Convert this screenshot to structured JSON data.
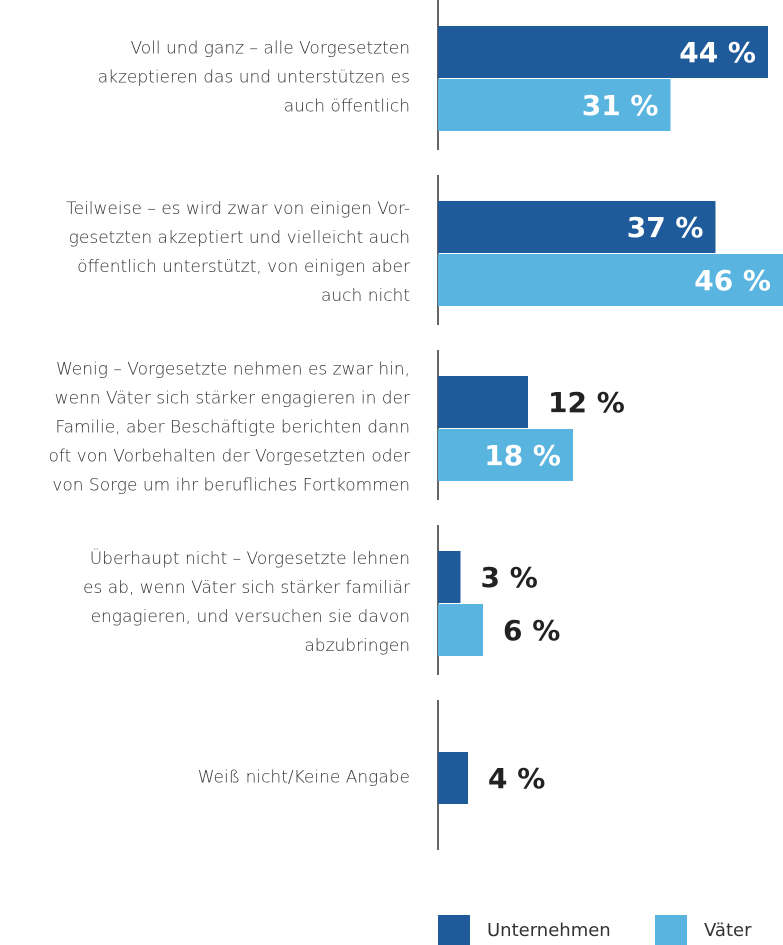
{
  "chart_data": {
    "type": "hbar",
    "categories": [
      "Voll und ganz – alle Vorgesetzten\nakzeptieren das und unterstützen es\nauch öffentlich",
      "Teilweise – es wird zwar von einigen Vor-\ngesetzten akzeptiert und vielleicht auch\nöffentlich unterstützt, von einigen aber\nauch nicht",
      "Wenig – Vorgesetzte nehmen es zwar hin,\nwenn Väter sich stärker engagieren in der\nFamilie, aber Beschäftigte berichten dann\noft von Vorbehalten der Vorgesetzten oder\nvon Sorge um ihr berufliches Fortkommen",
      "Überhaupt nicht – Vorgesetzte lehnen\nes ab, wenn Väter sich stärker familiär\nengagieren, und versuchen sie davon\nabzubringen",
      "Weiß nicht/Keine Angabe"
    ],
    "series": [
      {
        "name": "Unternehmen",
        "color": "#1f5b9b",
        "values": [
          44,
          37,
          12,
          3,
          4
        ],
        "value_labels": [
          "44 %",
          "37 %",
          "12 %",
          "3 %",
          "4 %"
        ]
      },
      {
        "name": "Väter",
        "color": "#5ab4e0",
        "values": [
          31,
          46,
          18,
          6,
          null
        ],
        "value_labels": [
          "31 %",
          "46 %",
          "18 %",
          "6 %",
          null
        ]
      }
    ]
  }
}
